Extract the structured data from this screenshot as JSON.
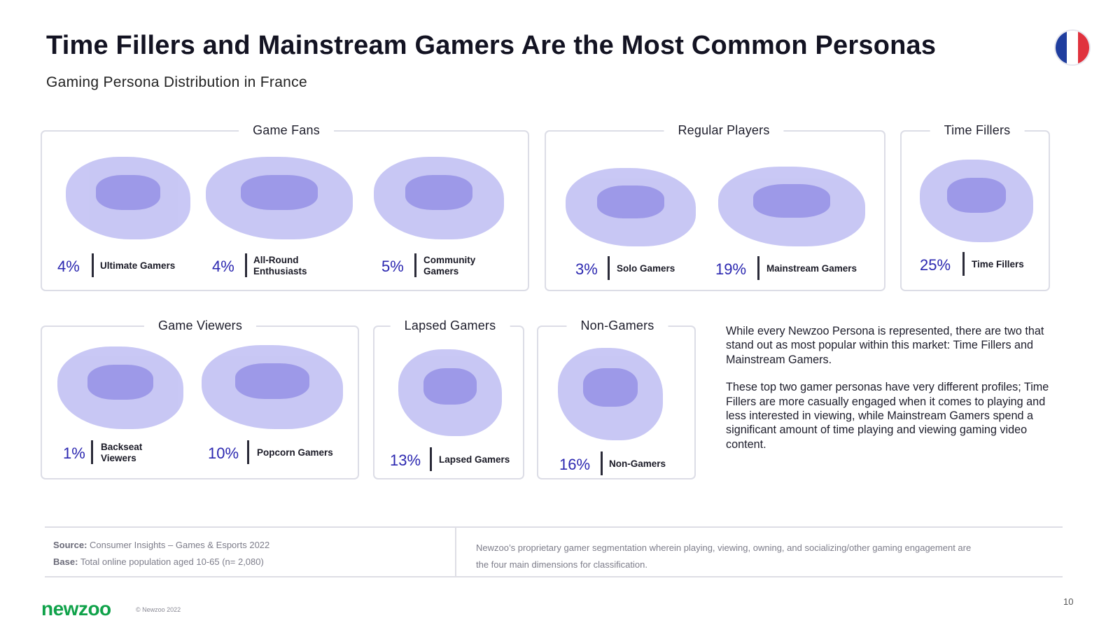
{
  "header": {
    "title": "Time Fillers and Mainstream Gamers Are the Most Common Personas",
    "subtitle": "Gaming Persona Distribution in France",
    "flag_colors": [
      "#1f3d9e",
      "#ffffff",
      "#e0323e"
    ]
  },
  "groups": {
    "game_fans": {
      "title": "Game Fans",
      "personas": [
        {
          "pct": "4%",
          "label": "Ultimate Gamers"
        },
        {
          "pct": "4%",
          "label": "All-Round Enthusiasts"
        },
        {
          "pct": "5%",
          "label": "Community Gamers"
        }
      ]
    },
    "regular_players": {
      "title": "Regular Players",
      "personas": [
        {
          "pct": "3%",
          "label": "Solo Gamers"
        },
        {
          "pct": "19%",
          "label": "Mainstream Gamers"
        }
      ]
    },
    "time_fillers": {
      "title": "Time Fillers",
      "personas": [
        {
          "pct": "25%",
          "label": "Time Fillers"
        }
      ]
    },
    "game_viewers": {
      "title": "Game Viewers",
      "personas": [
        {
          "pct": "1%",
          "label": "Backseat Viewers"
        },
        {
          "pct": "10%",
          "label": "Popcorn Gamers"
        }
      ]
    },
    "lapsed_gamers": {
      "title": "Lapsed Gamers",
      "personas": [
        {
          "pct": "13%",
          "label": "Lapsed Gamers"
        }
      ]
    },
    "non_gamers": {
      "title": "Non-Gamers",
      "personas": [
        {
          "pct": "16%",
          "label": "Non-Gamers"
        }
      ]
    }
  },
  "commentary": {
    "p1": "While every Newzoo Persona is represented, there are two that stand out as most popular within this market: Time Fillers and Mainstream Gamers.",
    "p2": "These top two gamer personas have very different profiles; Time Fillers are more casually engaged when it comes to playing and less interested in viewing, while Mainstream Gamers spend a significant amount of time playing and viewing gaming video content."
  },
  "footer": {
    "source_label": "Source:",
    "source_value": "Consumer Insights – Games & Esports 2022",
    "base_label": "Base:",
    "base_value": "Total online population aged 10-65 (n= 2,080)",
    "note": "Newzoo’s proprietary gamer segmentation wherein playing, viewing, owning, and socializing/other gaming engagement are the four main dimensions for classification.",
    "logo": "newzoo",
    "copyright": "© Newzoo 2022",
    "page_number": "10"
  },
  "colors": {
    "accent": "#2b27b0",
    "illustration": "#c6c5f4",
    "logo_green": "#10a24a"
  }
}
